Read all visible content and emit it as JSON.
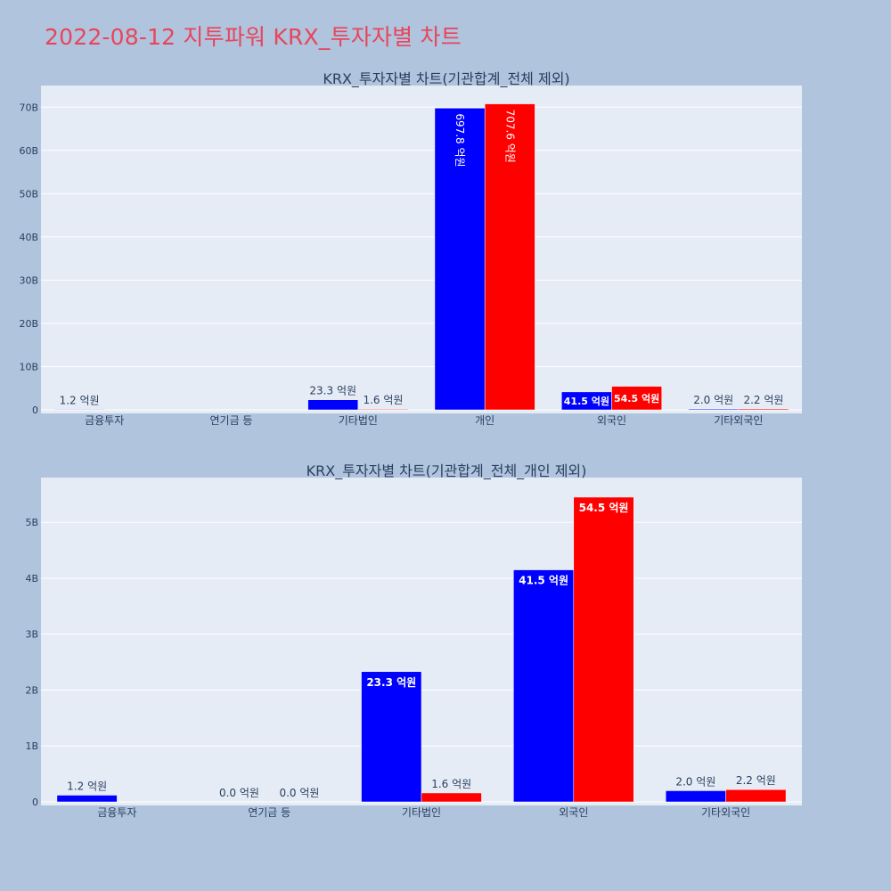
{
  "page": {
    "title": "2022-08-12 지투파워 KRX_투자자별 차트",
    "title_color": "#e8455a",
    "background": "#b0c4de",
    "plot_background": "#e5ecf6"
  },
  "series_colors": [
    "#0000ff",
    "#ff0000"
  ],
  "chart_data": [
    {
      "type": "bar",
      "title": "KRX_투자자별 차트(기관합계_전체 제외)",
      "categories": [
        "금융투자",
        "연기금 등",
        "기타법인",
        "개인",
        "외국인",
        "기타외국인"
      ],
      "series": [
        {
          "color": "#0000ff",
          "values": [
            120000000,
            null,
            2330000000,
            69780000000,
            4150000000,
            200000000
          ],
          "labels": [
            "1.2 억원",
            "",
            "23.3 억원",
            "697.8 억원",
            "41.5 억원",
            "2.0 억원"
          ]
        },
        {
          "color": "#ff0000",
          "values": [
            null,
            null,
            160000000,
            70760000000,
            5450000000,
            220000000
          ],
          "labels": [
            "",
            "",
            "1.6 억원",
            "707.6 억원",
            "54.5 억원",
            "2.2 억원"
          ]
        }
      ],
      "ylim": [
        0,
        75000000000
      ],
      "yticks": [
        0,
        10000000000,
        20000000000,
        30000000000,
        40000000000,
        50000000000,
        60000000000,
        70000000000
      ],
      "ytick_labels": [
        "0",
        "10B",
        "20B",
        "30B",
        "40B",
        "50B",
        "60B",
        "70B"
      ],
      "grid": true
    },
    {
      "type": "bar",
      "title": "KRX_투자자별 차트(기관합계_전체_개인 제외)",
      "categories": [
        "금융투자",
        "연기금 등",
        "기타법인",
        "외국인",
        "기타외국인"
      ],
      "series": [
        {
          "color": "#0000ff",
          "values": [
            120000000,
            0,
            2330000000,
            4150000000,
            200000000
          ],
          "labels": [
            "1.2 억원",
            "0.0 억원",
            "23.3 억원",
            "41.5 억원",
            "2.0 억원"
          ]
        },
        {
          "color": "#ff0000",
          "values": [
            null,
            0,
            160000000,
            5450000000,
            220000000
          ],
          "labels": [
            "",
            "0.0 억원",
            "1.6 억원",
            "54.5 억원",
            "2.2 억원"
          ]
        }
      ],
      "ylim": [
        0,
        5800000000
      ],
      "yticks": [
        0,
        1000000000,
        2000000000,
        3000000000,
        4000000000,
        5000000000
      ],
      "ytick_labels": [
        "0",
        "1B",
        "2B",
        "3B",
        "4B",
        "5B"
      ],
      "grid": true
    }
  ]
}
